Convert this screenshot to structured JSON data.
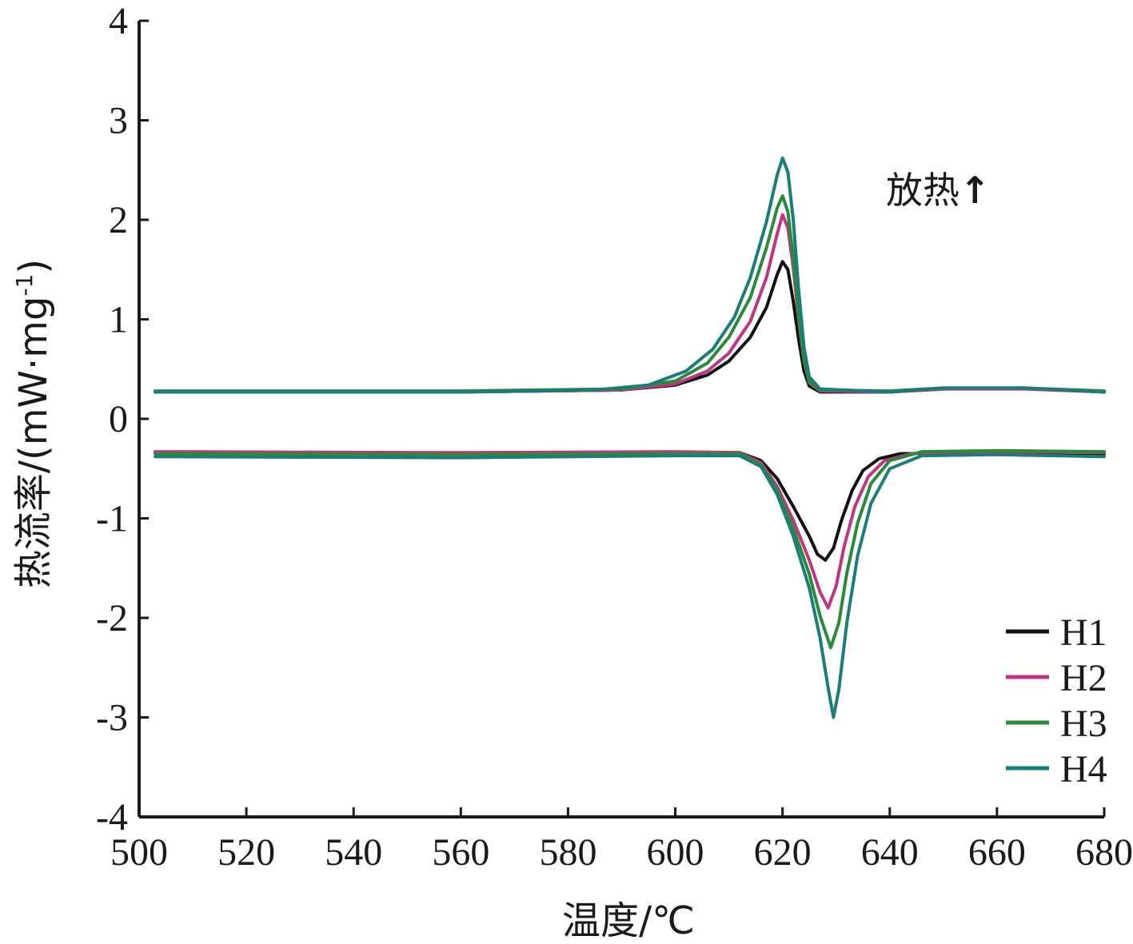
{
  "chart_data": {
    "type": "line",
    "xlabel": "温度/℃",
    "ylabel": "热流率/(mW·mg",
    "ylabel_sup": "-1",
    "ylabel_close": ")",
    "annotation": "放热",
    "annotation_arrow": "↑",
    "xlim": [
      500,
      680
    ],
    "ylim": [
      -4,
      4
    ],
    "xticks": [
      500,
      520,
      540,
      560,
      580,
      600,
      620,
      640,
      660,
      680
    ],
    "yticks": [
      4,
      3,
      2,
      1,
      0,
      -1,
      -2,
      -3,
      -4
    ],
    "legend_position": "bottom-right",
    "series": [
      {
        "name": "H1",
        "color": "#111111",
        "cooling": [
          [
            503,
            0.27
          ],
          [
            560,
            0.27
          ],
          [
            590,
            0.29
          ],
          [
            600,
            0.34
          ],
          [
            606,
            0.44
          ],
          [
            610,
            0.58
          ],
          [
            614,
            0.82
          ],
          [
            617,
            1.12
          ],
          [
            619,
            1.45
          ],
          [
            620,
            1.58
          ],
          [
            621,
            1.5
          ],
          [
            622,
            1.18
          ],
          [
            623,
            0.8
          ],
          [
            624,
            0.48
          ],
          [
            625,
            0.33
          ],
          [
            627,
            0.27
          ],
          [
            640,
            0.27
          ],
          [
            650,
            0.3
          ],
          [
            665,
            0.31
          ],
          [
            680,
            0.27
          ]
        ],
        "heating": [
          [
            503,
            -0.34
          ],
          [
            560,
            -0.35
          ],
          [
            600,
            -0.34
          ],
          [
            612,
            -0.34
          ],
          [
            616,
            -0.42
          ],
          [
            619,
            -0.6
          ],
          [
            622,
            -0.88
          ],
          [
            625,
            -1.18
          ],
          [
            626.5,
            -1.36
          ],
          [
            628,
            -1.42
          ],
          [
            629.5,
            -1.3
          ],
          [
            631,
            -1.02
          ],
          [
            633,
            -0.72
          ],
          [
            635,
            -0.52
          ],
          [
            638,
            -0.4
          ],
          [
            642,
            -0.35
          ],
          [
            660,
            -0.34
          ],
          [
            680,
            -0.35
          ]
        ]
      },
      {
        "name": "H2",
        "color": "#c0357f",
        "cooling": [
          [
            503,
            0.27
          ],
          [
            560,
            0.27
          ],
          [
            590,
            0.29
          ],
          [
            600,
            0.35
          ],
          [
            606,
            0.48
          ],
          [
            610,
            0.66
          ],
          [
            614,
            0.98
          ],
          [
            617,
            1.42
          ],
          [
            619,
            1.86
          ],
          [
            620,
            2.05
          ],
          [
            621,
            1.92
          ],
          [
            622,
            1.52
          ],
          [
            623,
            1.0
          ],
          [
            624,
            0.58
          ],
          [
            625,
            0.36
          ],
          [
            627,
            0.28
          ],
          [
            640,
            0.27
          ],
          [
            650,
            0.3
          ],
          [
            665,
            0.3
          ],
          [
            680,
            0.27
          ]
        ],
        "heating": [
          [
            503,
            -0.33
          ],
          [
            560,
            -0.34
          ],
          [
            600,
            -0.33
          ],
          [
            612,
            -0.34
          ],
          [
            616,
            -0.44
          ],
          [
            619,
            -0.68
          ],
          [
            622,
            -1.02
          ],
          [
            625,
            -1.42
          ],
          [
            627,
            -1.74
          ],
          [
            628.5,
            -1.9
          ],
          [
            630,
            -1.68
          ],
          [
            631.5,
            -1.28
          ],
          [
            633.5,
            -0.88
          ],
          [
            636,
            -0.58
          ],
          [
            639,
            -0.42
          ],
          [
            644,
            -0.35
          ],
          [
            660,
            -0.33
          ],
          [
            680,
            -0.34
          ]
        ]
      },
      {
        "name": "H3",
        "color": "#2a8a3a",
        "cooling": [
          [
            503,
            0.28
          ],
          [
            560,
            0.28
          ],
          [
            590,
            0.3
          ],
          [
            600,
            0.38
          ],
          [
            606,
            0.56
          ],
          [
            610,
            0.82
          ],
          [
            614,
            1.22
          ],
          [
            617,
            1.72
          ],
          [
            619,
            2.12
          ],
          [
            620,
            2.24
          ],
          [
            621,
            2.08
          ],
          [
            622,
            1.62
          ],
          [
            623,
            1.05
          ],
          [
            624,
            0.6
          ],
          [
            625,
            0.37
          ],
          [
            627,
            0.29
          ],
          [
            640,
            0.28
          ],
          [
            650,
            0.31
          ],
          [
            665,
            0.31
          ],
          [
            680,
            0.28
          ]
        ],
        "heating": [
          [
            503,
            -0.35
          ],
          [
            560,
            -0.36
          ],
          [
            600,
            -0.35
          ],
          [
            612,
            -0.35
          ],
          [
            616,
            -0.46
          ],
          [
            619,
            -0.72
          ],
          [
            622,
            -1.1
          ],
          [
            625,
            -1.56
          ],
          [
            627,
            -1.98
          ],
          [
            629,
            -2.3
          ],
          [
            630.5,
            -2.05
          ],
          [
            632,
            -1.55
          ],
          [
            634,
            -1.05
          ],
          [
            636.5,
            -0.65
          ],
          [
            640,
            -0.42
          ],
          [
            646,
            -0.33
          ],
          [
            660,
            -0.32
          ],
          [
            680,
            -0.33
          ]
        ]
      },
      {
        "name": "H4",
        "color": "#1a7d78",
        "cooling": [
          [
            503,
            0.27
          ],
          [
            560,
            0.27
          ],
          [
            585,
            0.29
          ],
          [
            595,
            0.34
          ],
          [
            602,
            0.48
          ],
          [
            607,
            0.7
          ],
          [
            611,
            1.02
          ],
          [
            614,
            1.42
          ],
          [
            617,
            1.98
          ],
          [
            619,
            2.45
          ],
          [
            620,
            2.62
          ],
          [
            621,
            2.48
          ],
          [
            622,
            2.0
          ],
          [
            623,
            1.3
          ],
          [
            624,
            0.72
          ],
          [
            625,
            0.42
          ],
          [
            627,
            0.3
          ],
          [
            640,
            0.27
          ],
          [
            650,
            0.31
          ],
          [
            665,
            0.31
          ],
          [
            680,
            0.27
          ]
        ],
        "heating": [
          [
            503,
            -0.38
          ],
          [
            560,
            -0.39
          ],
          [
            600,
            -0.37
          ],
          [
            612,
            -0.37
          ],
          [
            616,
            -0.48
          ],
          [
            619,
            -0.76
          ],
          [
            622,
            -1.18
          ],
          [
            625,
            -1.7
          ],
          [
            627,
            -2.2
          ],
          [
            628.5,
            -2.7
          ],
          [
            629.5,
            -3.0
          ],
          [
            630.5,
            -2.72
          ],
          [
            632,
            -2.05
          ],
          [
            634,
            -1.38
          ],
          [
            636.5,
            -0.85
          ],
          [
            640,
            -0.5
          ],
          [
            646,
            -0.37
          ],
          [
            660,
            -0.36
          ],
          [
            680,
            -0.38
          ]
        ]
      }
    ]
  }
}
